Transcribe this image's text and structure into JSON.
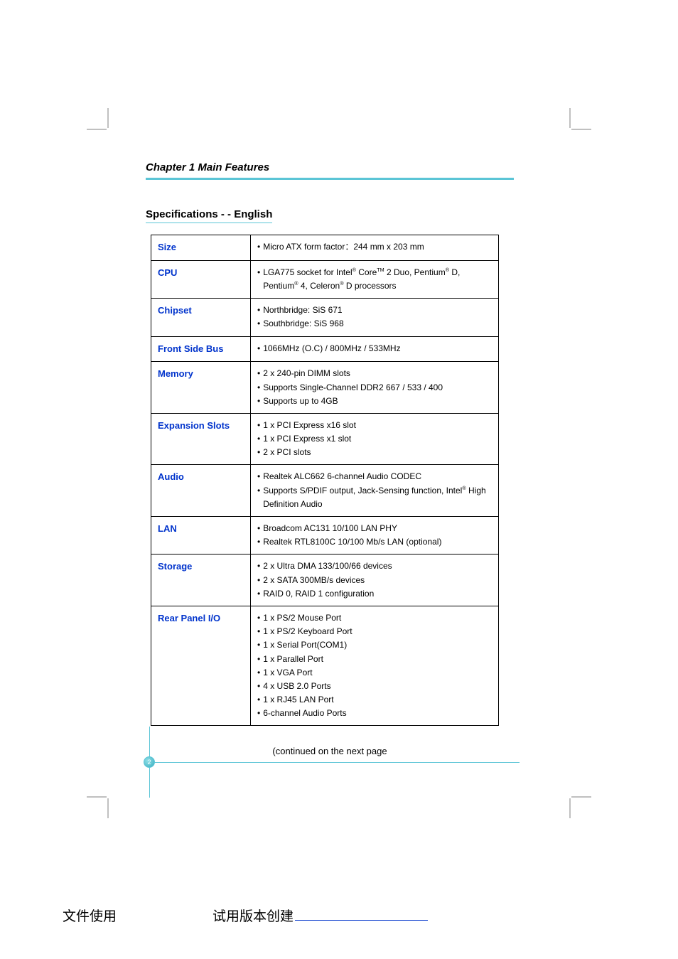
{
  "chapter_title": "Chapter  1   Main Features",
  "section_title": "Specifications - - English",
  "continued_note": "(continued on the next page",
  "page_number": "2",
  "footer": {
    "left": "文件使用",
    "middle": "试用版本创建"
  },
  "crop_marks": {
    "stroke": "#808080",
    "length": 28,
    "gap": 10
  },
  "accent_color": "#5bc5d6",
  "label_color": "#0033cc",
  "table": {
    "columns": [
      "label",
      "value"
    ],
    "rows": [
      {
        "label": "Size",
        "items": [
          "Micro ATX form factor：244 mm x 203 mm"
        ]
      },
      {
        "label": "CPU",
        "items": [
          "LGA775 socket for Intel® Core™ 2 Duo, Pentium® D, Pentium® 4, Celeron® D processors"
        ]
      },
      {
        "label": "Chipset",
        "items": [
          "Northbridge: SiS 671",
          "Southbridge: SiS 968"
        ]
      },
      {
        "label": "Front Side Bus",
        "items": [
          "1066MHz (O.C) / 800MHz / 533MHz"
        ]
      },
      {
        "label": "Memory",
        "items": [
          "2 x 240-pin DIMM slots",
          "Supports Single-Channel DDR2 667 / 533 / 400",
          "Supports up to 4GB"
        ]
      },
      {
        "label": "Expansion Slots",
        "items": [
          "1 x PCI Express x16 slot",
          "1 x PCI Express x1 slot",
          "2 x PCI slots"
        ]
      },
      {
        "label": "Audio",
        "items": [
          "Realtek ALC662 6-channel  Audio CODEC",
          "Supports S/PDIF output, Jack-Sensing function, Intel® High Definition Audio"
        ]
      },
      {
        "label": "LAN",
        "items": [
          "Broadcom AC131 10/100 LAN PHY",
          "Realtek RTL8100C 10/100 Mb/s LAN (optional)"
        ]
      },
      {
        "label": "Storage",
        "items": [
          "2 x Ultra DMA 133/100/66 devices",
          "2 x SATA 300MB/s devices",
          "RAID 0, RAID 1 configuration"
        ]
      },
      {
        "label": "Rear Panel I/O",
        "items": [
          "1 x PS/2 Mouse Port",
          "1 x PS/2 Keyboard Port",
          "1 x Serial Port(COM1)",
          "1 x Parallel Port",
          "1 x VGA Port",
          "4 x USB 2.0 Ports",
          "1 x RJ45 LAN Port",
          "6-channel Audio Ports"
        ]
      }
    ]
  }
}
